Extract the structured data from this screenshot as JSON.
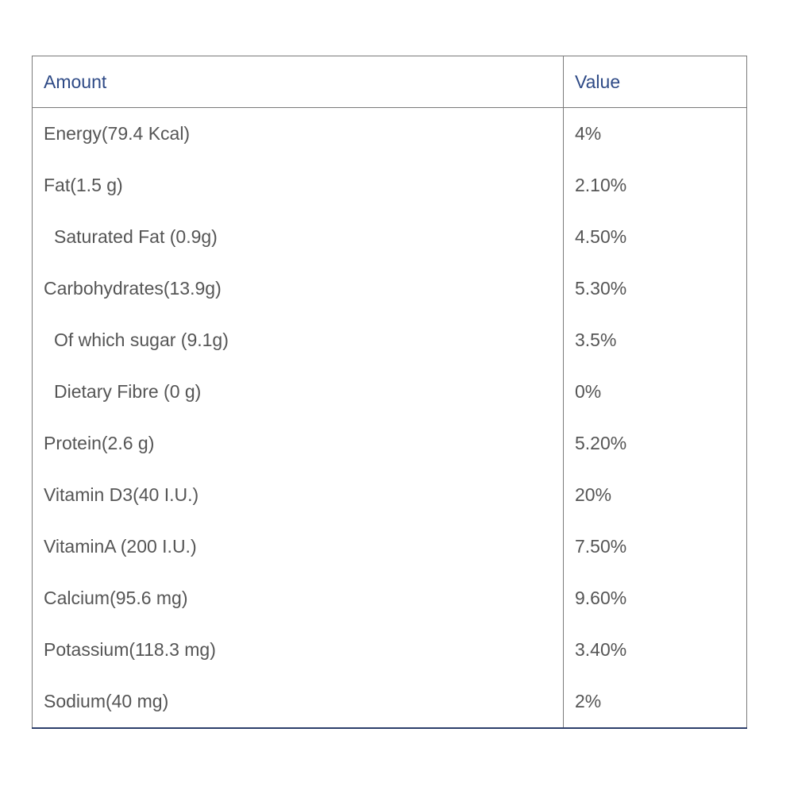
{
  "table": {
    "headers": {
      "amount": "Amount",
      "value": "Value"
    },
    "rows": [
      {
        "amount": "Energy(79.4 Kcal)",
        "value": "4%",
        "indent": false
      },
      {
        "amount": "Fat(1.5 g)",
        "value": "2.10%",
        "indent": false
      },
      {
        "amount": "Saturated Fat (0.9g)",
        "value": "4.50%",
        "indent": true
      },
      {
        "amount": "Carbohydrates(13.9g)",
        "value": "5.30%",
        "indent": false
      },
      {
        "amount": "Of which sugar (9.1g)",
        "value": "3.5%",
        "indent": true
      },
      {
        "amount": "Dietary Fibre (0 g)",
        "value": "0%",
        "indent": true
      },
      {
        "amount": "Protein(2.6 g)",
        "value": "5.20%",
        "indent": false
      },
      {
        "amount": "Vitamin D3(40 I.U.)",
        "value": "20%",
        "indent": false
      },
      {
        "amount": "VitaminA (200 I.U.)",
        "value": "7.50%",
        "indent": false
      },
      {
        "amount": "Calcium(95.6 mg)",
        "value": "9.60%",
        "indent": false
      },
      {
        "amount": "Potassium(118.3 mg)",
        "value": "3.40%",
        "indent": false
      },
      {
        "amount": "Sodium(40 mg)",
        "value": "2%",
        "indent": false
      }
    ]
  },
  "colors": {
    "header_text": "#2e4a86",
    "body_text": "#555555",
    "border": "#7a7a7a",
    "bottom_border": "#2c3e6b"
  }
}
